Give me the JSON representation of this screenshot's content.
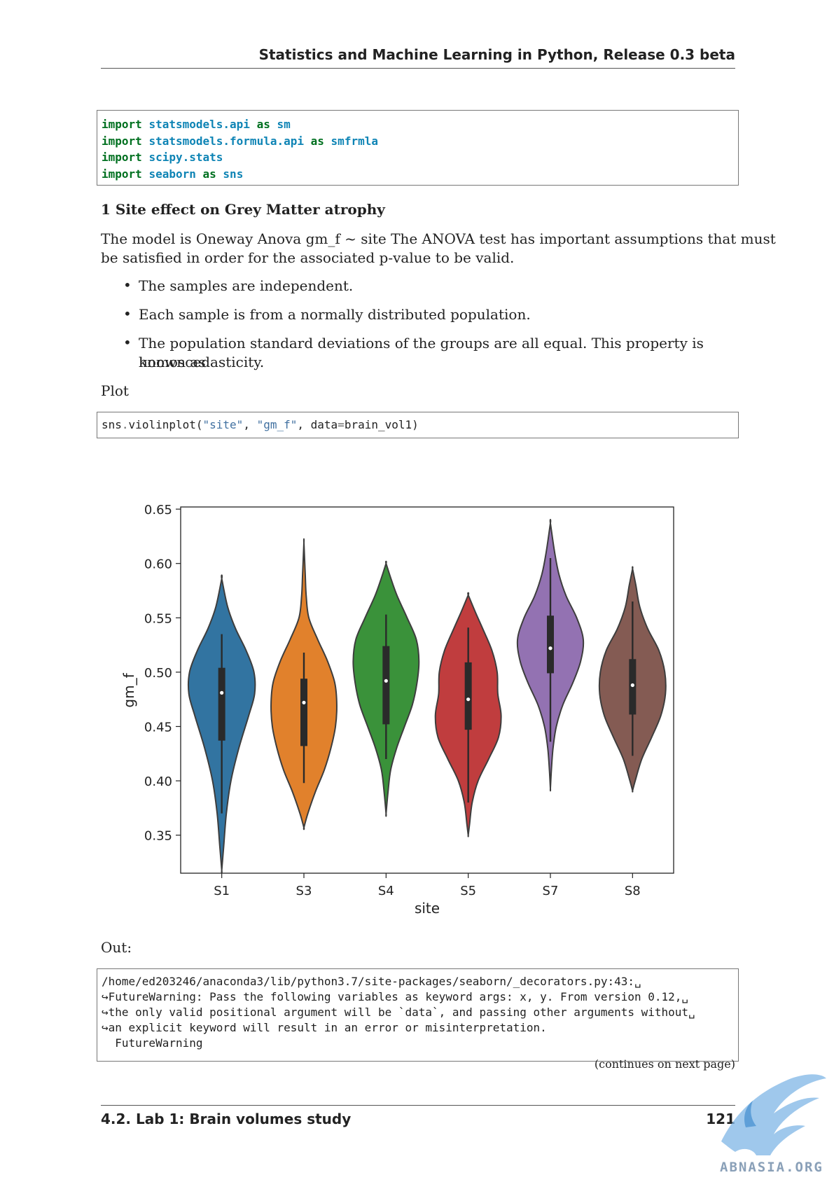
{
  "header": {
    "title": "Statistics and Machine Learning in Python, Release 0.3 beta"
  },
  "code_imports": [
    [
      "import",
      "statsmodels.api",
      "as",
      "sm"
    ],
    [
      "import",
      "statsmodels.formula.api",
      "as",
      "smfrmla"
    ],
    [
      "import",
      "scipy.stats",
      "",
      ""
    ],
    [
      "import",
      "seaborn",
      "as",
      "sns"
    ]
  ],
  "section": {
    "title": "1 Site effect on Grey Matter atrophy"
  },
  "intro": {
    "line1": "The model is Oneway Anova gm_f ~ site The ANOVA test has important assumptions that must",
    "line2": "be satisfied in order for the associated p-value to be valid."
  },
  "bullets": [
    {
      "lines": [
        "The samples are independent."
      ]
    },
    {
      "lines": [
        "Each sample is from a normally distributed population."
      ]
    },
    {
      "lines": [
        "The population standard deviations of the groups are all equal.  This property is known as",
        "homoscedasticity."
      ]
    }
  ],
  "plot_label": "Plot",
  "plot_code": {
    "obj": "sns",
    "dot": ".",
    "func": "violinplot(",
    "arg1": "\"site\"",
    "comma1": ", ",
    "arg2": "\"gm_f\"",
    "comma2": ", ",
    "kw": "data",
    "eq": "=",
    "rest": "brain_vol1)"
  },
  "chart_data": {
    "type": "violin",
    "xlabel": "site",
    "ylabel": "gm_f",
    "ylim": [
      0.315,
      0.652
    ],
    "yticks": [
      "0.65",
      "0.60",
      "0.55",
      "0.50",
      "0.45",
      "0.40",
      "0.35"
    ],
    "ytick_values": [
      0.65,
      0.6,
      0.55,
      0.5,
      0.45,
      0.4,
      0.35
    ],
    "categories": [
      "S1",
      "S3",
      "S4",
      "S5",
      "S7",
      "S8"
    ],
    "series": [
      {
        "name": "S1",
        "color": "#3274a1",
        "min": 0.318,
        "max": 0.586,
        "q1": 0.437,
        "median": 0.481,
        "q3": 0.504,
        "whisker_low": 0.37,
        "whisker_high": 0.535,
        "profile": [
          [
            0.318,
            0.0
          ],
          [
            0.34,
            0.06
          ],
          [
            0.37,
            0.14
          ],
          [
            0.4,
            0.28
          ],
          [
            0.43,
            0.52
          ],
          [
            0.46,
            0.82
          ],
          [
            0.48,
            1.0
          ],
          [
            0.5,
            0.98
          ],
          [
            0.52,
            0.74
          ],
          [
            0.54,
            0.42
          ],
          [
            0.56,
            0.18
          ],
          [
            0.586,
            0.0
          ]
        ]
      },
      {
        "name": "S3",
        "color": "#e1812c",
        "min": 0.357,
        "max": 0.619,
        "q1": 0.432,
        "median": 0.472,
        "q3": 0.494,
        "whisker_low": 0.398,
        "whisker_high": 0.518,
        "profile": [
          [
            0.357,
            0.0
          ],
          [
            0.37,
            0.12
          ],
          [
            0.39,
            0.35
          ],
          [
            0.41,
            0.62
          ],
          [
            0.43,
            0.82
          ],
          [
            0.45,
            0.96
          ],
          [
            0.47,
            1.0
          ],
          [
            0.49,
            0.94
          ],
          [
            0.51,
            0.72
          ],
          [
            0.53,
            0.42
          ],
          [
            0.55,
            0.15
          ],
          [
            0.57,
            0.07
          ],
          [
            0.59,
            0.04
          ],
          [
            0.619,
            0.0
          ]
        ]
      },
      {
        "name": "S4",
        "color": "#3a923a",
        "min": 0.37,
        "max": 0.6,
        "q1": 0.452,
        "median": 0.492,
        "q3": 0.524,
        "whisker_low": 0.42,
        "whisker_high": 0.553,
        "profile": [
          [
            0.37,
            0.0
          ],
          [
            0.39,
            0.06
          ],
          [
            0.41,
            0.14
          ],
          [
            0.43,
            0.32
          ],
          [
            0.45,
            0.56
          ],
          [
            0.47,
            0.8
          ],
          [
            0.49,
            0.94
          ],
          [
            0.51,
            1.0
          ],
          [
            0.53,
            0.92
          ],
          [
            0.55,
            0.64
          ],
          [
            0.57,
            0.34
          ],
          [
            0.585,
            0.16
          ],
          [
            0.6,
            0.0
          ]
        ]
      },
      {
        "name": "S5",
        "color": "#c03d3e",
        "min": 0.35,
        "max": 0.571,
        "q1": 0.447,
        "median": 0.475,
        "q3": 0.509,
        "whisker_low": 0.38,
        "whisker_high": 0.541,
        "profile": [
          [
            0.35,
            0.0
          ],
          [
            0.36,
            0.04
          ],
          [
            0.38,
            0.12
          ],
          [
            0.4,
            0.3
          ],
          [
            0.42,
            0.62
          ],
          [
            0.44,
            0.92
          ],
          [
            0.46,
            1.0
          ],
          [
            0.48,
            0.9
          ],
          [
            0.5,
            0.88
          ],
          [
            0.52,
            0.72
          ],
          [
            0.54,
            0.44
          ],
          [
            0.555,
            0.22
          ],
          [
            0.571,
            0.0
          ]
        ]
      },
      {
        "name": "S7",
        "color": "#9372b2",
        "min": 0.393,
        "max": 0.637,
        "q1": 0.499,
        "median": 0.522,
        "q3": 0.552,
        "whisker_low": 0.436,
        "whisker_high": 0.605,
        "profile": [
          [
            0.393,
            0.0
          ],
          [
            0.41,
            0.03
          ],
          [
            0.43,
            0.08
          ],
          [
            0.45,
            0.18
          ],
          [
            0.47,
            0.38
          ],
          [
            0.49,
            0.68
          ],
          [
            0.51,
            0.92
          ],
          [
            0.53,
            1.0
          ],
          [
            0.55,
            0.8
          ],
          [
            0.57,
            0.48
          ],
          [
            0.59,
            0.26
          ],
          [
            0.61,
            0.13
          ],
          [
            0.637,
            0.0
          ]
        ]
      },
      {
        "name": "S8",
        "color": "#845b53",
        "min": 0.391,
        "max": 0.595,
        "q1": 0.461,
        "median": 0.488,
        "q3": 0.512,
        "whisker_low": 0.423,
        "whisker_high": 0.565,
        "profile": [
          [
            0.391,
            0.0
          ],
          [
            0.4,
            0.08
          ],
          [
            0.42,
            0.28
          ],
          [
            0.44,
            0.58
          ],
          [
            0.46,
            0.86
          ],
          [
            0.48,
            1.0
          ],
          [
            0.5,
            0.98
          ],
          [
            0.52,
            0.8
          ],
          [
            0.54,
            0.46
          ],
          [
            0.56,
            0.22
          ],
          [
            0.58,
            0.1
          ],
          [
            0.595,
            0.0
          ]
        ]
      }
    ]
  },
  "out_label": "Out:",
  "output_lines": [
    "/home/ed203246/anaconda3/lib/python3.7/site-packages/seaborn/_decorators.py:43:␣",
    "↪FutureWarning: Pass the following variables as keyword args: x, y. From version 0.12,␣",
    "↪the only valid positional argument will be `data`, and passing other arguments without␣",
    "↪an explicit keyword will result in an error or misinterpretation.",
    "  FutureWarning"
  ],
  "continues": "(continues on next page)",
  "footer": {
    "section": "4.2.  Lab 1: Brain volumes study",
    "page": "121"
  },
  "watermark": {
    "text": "ABNASIA.ORG"
  }
}
